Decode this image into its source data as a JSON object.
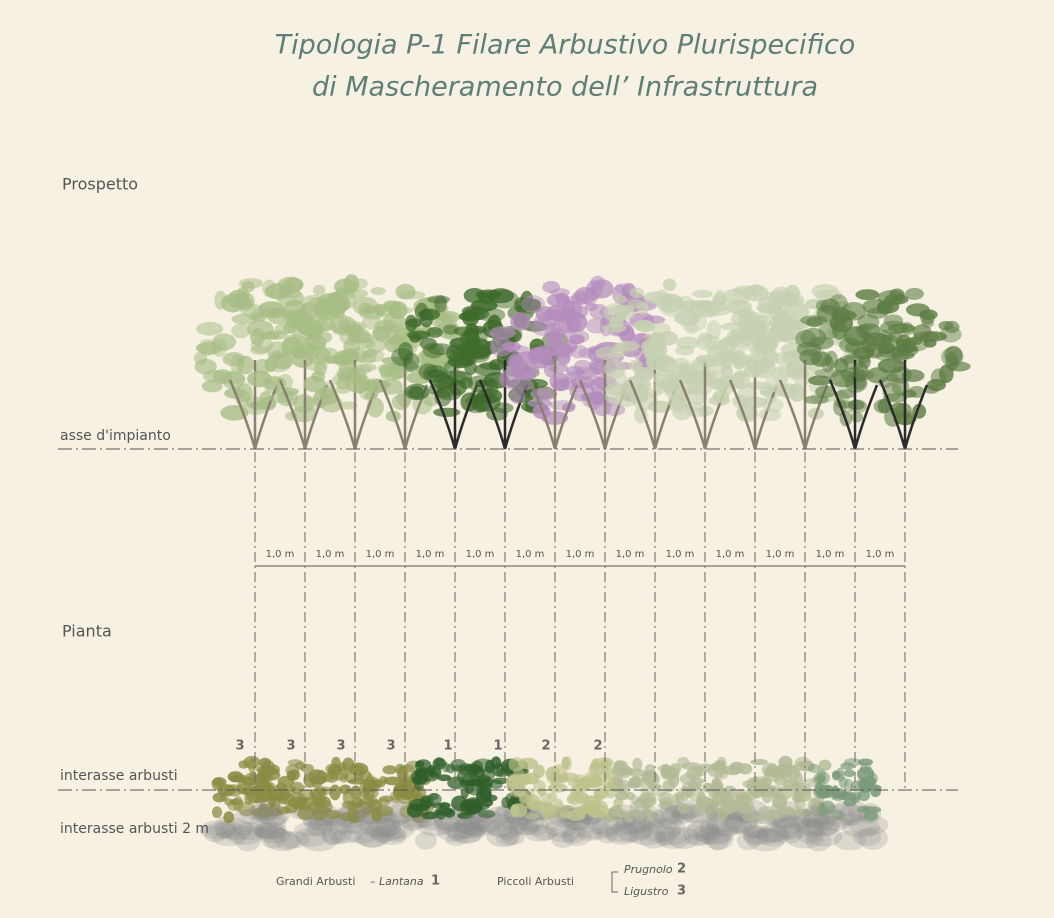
{
  "title": {
    "line1": "Tipologia P-1 Filare Arbustivo Plurispecifico",
    "line2": "di Mascheramento dell’ Infrastruttura"
  },
  "prospetto": {
    "label": "Prospetto",
    "axis_label": "asse d'impianto",
    "spacings": [
      "1,0 m",
      "1,0 m",
      "1,0 m",
      "1,0 m",
      "1,0 m",
      "1,0 m",
      "1,0 m",
      "1,0 m",
      "1,0 m",
      "1,0 m",
      "1,0 m",
      "1,0 m",
      "1,0 m"
    ]
  },
  "pianta": {
    "label": "Pianta",
    "codes": [
      "3",
      "3",
      "3",
      "3",
      "1",
      "1",
      "2",
      "2"
    ],
    "axis_label": "interasse arbusti",
    "axis_label_2": "interasse arbusti 2 m"
  },
  "legend": {
    "large": "Grandi Arbusti",
    "large_species": "– Lantana",
    "large_code": "1",
    "small": "Piccoli Arbusti",
    "small_species_1": "Prugnolo",
    "small_code_1": "2",
    "small_species_2": "Ligustro",
    "small_code_2": "3"
  }
}
